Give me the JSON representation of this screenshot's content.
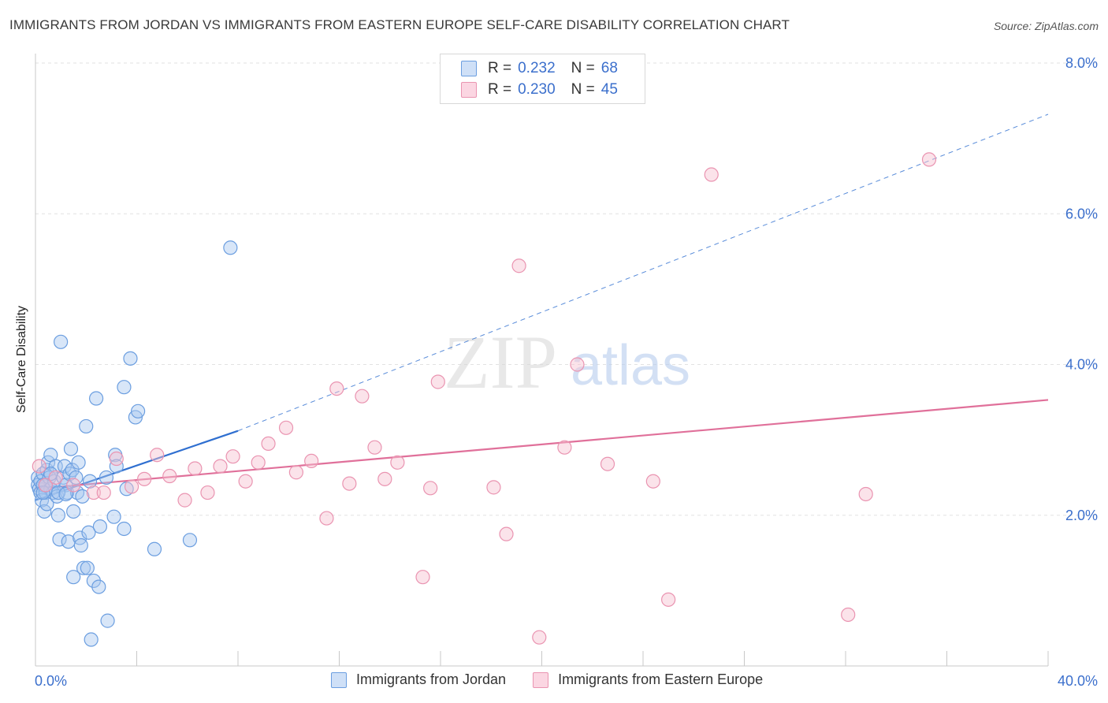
{
  "title": "IMMIGRANTS FROM JORDAN VS IMMIGRANTS FROM EASTERN EUROPE SELF-CARE DISABILITY CORRELATION CHART",
  "source": "Source: ZipAtlas.com",
  "watermark": {
    "zip": "ZIP",
    "atlas": "atlas"
  },
  "colors": {
    "blue_fill": "#a9c8f0",
    "blue_stroke": "#6b9ee0",
    "blue_line": "#2f6fd0",
    "pink_fill": "#f7c0d1",
    "pink_stroke": "#ea94b1",
    "pink_line": "#e0709a",
    "tick_label": "#3b6fcc"
  },
  "legend": {
    "rows": [
      {
        "r_label": "R =",
        "r_value": "0.232",
        "n_label": "N =",
        "n_value": "68",
        "color": "#a9c8f0"
      },
      {
        "r_label": "R =",
        "r_value": "0.230",
        "n_label": "N =",
        "n_value": "45",
        "color": "#f7c0d1"
      }
    ]
  },
  "chart_data": {
    "type": "scatter",
    "title": "IMMIGRANTS FROM JORDAN VS IMMIGRANTS FROM EASTERN EUROPE SELF-CARE DISABILITY CORRELATION CHART",
    "xlabel": "",
    "ylabel": "Self-Care Disability",
    "xlim": [
      0,
      40
    ],
    "ylim": [
      0,
      8
    ],
    "x_tick_labels": [
      "0.0%",
      "40.0%"
    ],
    "y_ticks": [
      2,
      4,
      6,
      8
    ],
    "y_tick_labels": [
      "2.0%",
      "4.0%",
      "6.0%",
      "8.0%"
    ],
    "grid": true,
    "legend_position": "top-center",
    "series": [
      {
        "name": "Immigrants from Jordan",
        "color": "#a9c8f0",
        "trend": {
          "x0": 0,
          "y0": 2.2,
          "x1": 8.0,
          "y1": 3.12,
          "dash_to_x": 40,
          "dash_to_y": 7.32
        },
        "points": [
          [
            0.1,
            2.5
          ],
          [
            0.1,
            2.4
          ],
          [
            0.15,
            2.35
          ],
          [
            0.2,
            2.3
          ],
          [
            0.2,
            2.45
          ],
          [
            0.25,
            2.2
          ],
          [
            0.3,
            2.55
          ],
          [
            0.3,
            2.4
          ],
          [
            0.35,
            2.05
          ],
          [
            0.4,
            2.3
          ],
          [
            0.45,
            2.6
          ],
          [
            0.45,
            2.15
          ],
          [
            0.5,
            2.7
          ],
          [
            0.55,
            2.5
          ],
          [
            0.6,
            2.8
          ],
          [
            0.6,
            2.35
          ],
          [
            0.7,
            2.3
          ],
          [
            0.75,
            2.45
          ],
          [
            0.8,
            2.65
          ],
          [
            0.85,
            2.25
          ],
          [
            0.9,
            2.0
          ],
          [
            0.95,
            1.68
          ],
          [
            1.0,
            4.3
          ],
          [
            1.1,
            2.5
          ],
          [
            1.15,
            2.65
          ],
          [
            1.2,
            2.4
          ],
          [
            1.25,
            2.3
          ],
          [
            1.3,
            1.65
          ],
          [
            1.35,
            2.55
          ],
          [
            1.4,
            2.88
          ],
          [
            1.45,
            2.6
          ],
          [
            1.5,
            2.05
          ],
          [
            1.5,
            1.18
          ],
          [
            1.6,
            2.5
          ],
          [
            1.65,
            2.3
          ],
          [
            1.7,
            2.7
          ],
          [
            1.75,
            1.7
          ],
          [
            1.8,
            1.6
          ],
          [
            1.85,
            2.25
          ],
          [
            1.9,
            1.3
          ],
          [
            2.0,
            3.18
          ],
          [
            2.05,
            1.3
          ],
          [
            2.1,
            1.77
          ],
          [
            2.15,
            2.45
          ],
          [
            2.2,
            0.35
          ],
          [
            2.3,
            1.13
          ],
          [
            2.4,
            3.55
          ],
          [
            2.5,
            1.05
          ],
          [
            2.55,
            1.85
          ],
          [
            2.8,
            2.5
          ],
          [
            2.85,
            0.6
          ],
          [
            3.1,
            1.98
          ],
          [
            3.15,
            2.8
          ],
          [
            3.2,
            2.65
          ],
          [
            3.5,
            3.7
          ],
          [
            3.5,
            1.82
          ],
          [
            3.6,
            2.35
          ],
          [
            3.75,
            4.08
          ],
          [
            3.95,
            3.3
          ],
          [
            4.05,
            3.38
          ],
          [
            4.7,
            1.55
          ],
          [
            6.1,
            1.67
          ],
          [
            7.7,
            5.55
          ],
          [
            0.3,
            2.3
          ],
          [
            0.4,
            2.4
          ],
          [
            0.6,
            2.55
          ],
          [
            0.9,
            2.3
          ],
          [
            1.2,
            2.28
          ]
        ]
      },
      {
        "name": "Immigrants from Eastern Europe",
        "color": "#f7c0d1",
        "trend": {
          "x0": 0,
          "y0": 2.35,
          "x1": 40,
          "y1": 3.53
        },
        "points": [
          [
            0.15,
            2.65
          ],
          [
            0.4,
            2.4
          ],
          [
            0.8,
            2.5
          ],
          [
            1.5,
            2.4
          ],
          [
            2.3,
            2.3
          ],
          [
            2.7,
            2.3
          ],
          [
            3.2,
            2.75
          ],
          [
            3.8,
            2.38
          ],
          [
            4.3,
            2.48
          ],
          [
            4.8,
            2.8
          ],
          [
            5.3,
            2.52
          ],
          [
            5.9,
            2.2
          ],
          [
            6.3,
            2.62
          ],
          [
            6.8,
            2.3
          ],
          [
            7.3,
            2.65
          ],
          [
            7.8,
            2.78
          ],
          [
            8.3,
            2.45
          ],
          [
            8.8,
            2.7
          ],
          [
            9.2,
            2.95
          ],
          [
            9.9,
            3.16
          ],
          [
            10.3,
            2.57
          ],
          [
            10.9,
            2.72
          ],
          [
            11.5,
            1.96
          ],
          [
            11.9,
            3.68
          ],
          [
            12.4,
            2.42
          ],
          [
            12.9,
            3.58
          ],
          [
            13.4,
            2.9
          ],
          [
            13.8,
            2.48
          ],
          [
            14.3,
            2.7
          ],
          [
            15.3,
            1.18
          ],
          [
            15.6,
            2.36
          ],
          [
            15.9,
            3.77
          ],
          [
            18.1,
            2.37
          ],
          [
            18.6,
            1.75
          ],
          [
            19.1,
            5.31
          ],
          [
            19.9,
            0.38
          ],
          [
            20.9,
            2.9
          ],
          [
            21.4,
            4.0
          ],
          [
            22.6,
            2.68
          ],
          [
            24.4,
            2.45
          ],
          [
            25.0,
            0.88
          ],
          [
            26.7,
            6.52
          ],
          [
            32.1,
            0.68
          ],
          [
            32.8,
            2.28
          ],
          [
            35.3,
            6.72
          ]
        ]
      }
    ]
  },
  "bottom_legend": [
    {
      "label": "Immigrants from Jordan",
      "color": "#a9c8f0"
    },
    {
      "label": "Immigrants from Eastern Europe",
      "color": "#f7c0d1"
    }
  ]
}
